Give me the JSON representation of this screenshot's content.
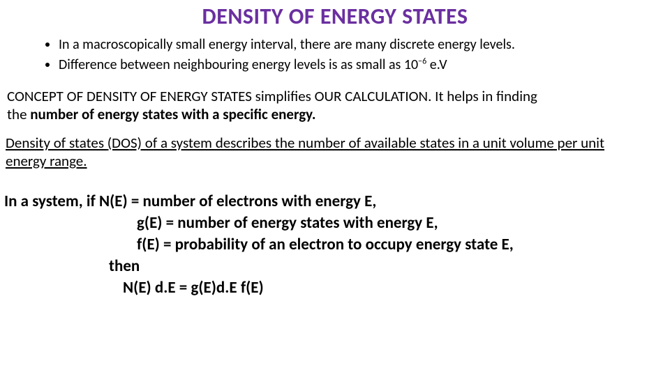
{
  "title": {
    "text": "DENSITY OF ENERGY STATES",
    "color": "#6b2fa0",
    "fontsize": 32
  },
  "bullets": [
    {
      "prefix": "In a macroscopically small energy interval, there are many discrete energy levels."
    },
    {
      "line2_a": "Difference between neighbouring energy levels is as small as ",
      "exp_base": "10",
      "exp_sup": "−6",
      "line2_b": " e.V"
    }
  ],
  "para1": {
    "a": "CONCEPT OF DENSITY OF ENERGY STATES simplifies OUR CALCULATION. It helps in finding",
    "b": " the ",
    "bold": "number of energy states with a specific energy."
  },
  "para2": {
    "a": "Density of states ",
    "dos": "(DOS)",
    "b": " of a system describes the number of available states in a unit volume per unit ",
    "c": "energy range."
  },
  "defs": {
    "l1": "In a system, if N(E) = number of electrons with energy E,",
    "l2": "g(E) = number of energy states with energy E,",
    "l3": "f(E) = probability of an electron to occupy energy state E,",
    "l4": "then",
    "l5": "N(E) d.E = g(E)d.E f(E)"
  },
  "colors": {
    "purple": "#6b2fa0",
    "text": "#000000",
    "bg": "#ffffff"
  }
}
